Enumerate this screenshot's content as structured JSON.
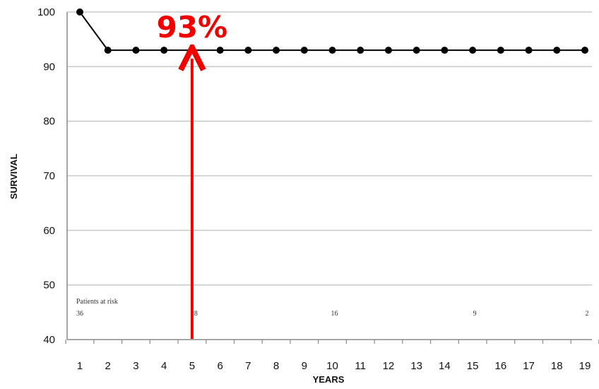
{
  "chart_data": {
    "type": "line",
    "title": "",
    "xlabel": "YEARS",
    "ylabel": "SURVIVAL",
    "x": [
      1,
      2,
      3,
      4,
      5,
      6,
      7,
      8,
      9,
      10,
      11,
      12,
      13,
      14,
      15,
      16,
      17,
      18,
      19
    ],
    "series": [
      {
        "values": [
          100,
          93,
          93,
          93,
          93,
          93,
          93,
          93,
          93,
          93,
          93,
          93,
          93,
          93,
          93,
          93,
          93,
          93,
          93
        ]
      }
    ],
    "xlim": [
      1,
      19
    ],
    "ylim": [
      40,
      100
    ],
    "y_ticks": [
      40,
      50,
      60,
      70,
      80,
      90,
      100
    ],
    "grid": true,
    "legend": "none",
    "patients_at_risk": {
      "label": "Patients at risk",
      "entries": [
        {
          "year": 1,
          "count": "36"
        },
        {
          "year": 5,
          "count": "28"
        },
        {
          "year": 10,
          "count": "16"
        },
        {
          "year": 15,
          "count": "9"
        },
        {
          "year": 19,
          "count": "2"
        }
      ]
    },
    "annotation": {
      "text": "93%",
      "x": 5,
      "y": 93,
      "color": "#f20000"
    },
    "colors": {
      "line": "#000000",
      "grid": "#c8c8c8",
      "axis": "#8a8a8a"
    }
  }
}
